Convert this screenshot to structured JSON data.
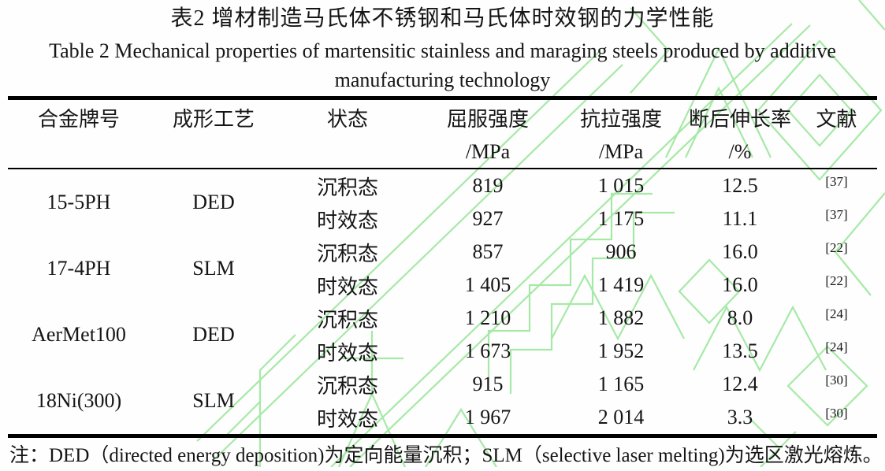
{
  "titles": {
    "cn": "表2 增材制造马氏体不锈钢和马氏体时效钢的力学性能",
    "en_line1": "Table 2 Mechanical properties of martensitic stainless and maraging steels produced by additive",
    "en_line2": "manufacturing technology"
  },
  "table": {
    "columns": [
      {
        "label": "合金牌号",
        "unit": ""
      },
      {
        "label": "成形工艺",
        "unit": ""
      },
      {
        "label": "状态",
        "unit": ""
      },
      {
        "label": "屈服强度",
        "unit": "/MPa"
      },
      {
        "label": "抗拉强度",
        "unit": "/MPa"
      },
      {
        "label": "断后伸长率",
        "unit": "/%"
      },
      {
        "label": "文献",
        "unit": ""
      }
    ],
    "groups": [
      {
        "alloy": "15-5PH",
        "process": "DED",
        "rows": [
          {
            "state": "沉积态",
            "yield_strength": "819",
            "tensile_strength": "1 015",
            "elongation": "12.5",
            "ref": "[37]"
          },
          {
            "state": "时效态",
            "yield_strength": "927",
            "tensile_strength": "1 175",
            "elongation": "11.1",
            "ref": "[37]"
          }
        ]
      },
      {
        "alloy": "17-4PH",
        "process": "SLM",
        "rows": [
          {
            "state": "沉积态",
            "yield_strength": "857",
            "tensile_strength": "906",
            "elongation": "16.0",
            "ref": "[22]"
          },
          {
            "state": "时效态",
            "yield_strength": "1 405",
            "tensile_strength": "1 419",
            "elongation": "16.0",
            "ref": "[22]"
          }
        ]
      },
      {
        "alloy": "AerMet100",
        "process": "DED",
        "rows": [
          {
            "state": "沉积态",
            "yield_strength": "1 210",
            "tensile_strength": "1 882",
            "elongation": "8.0",
            "ref": "[24]"
          },
          {
            "state": "时效态",
            "yield_strength": "1 673",
            "tensile_strength": "1 952",
            "elongation": "13.5",
            "ref": "[24]"
          }
        ]
      },
      {
        "alloy": "18Ni(300)",
        "process": "SLM",
        "rows": [
          {
            "state": "沉积态",
            "yield_strength": "915",
            "tensile_strength": "1 165",
            "elongation": "12.4",
            "ref": "[30]"
          },
          {
            "state": "时效态",
            "yield_strength": "1 967",
            "tensile_strength": "2 014",
            "elongation": "3.3",
            "ref": "[30]"
          }
        ]
      }
    ]
  },
  "note": "注：DED（directed energy deposition)为定向能量沉积；SLM（selective laser melting)为选区激光熔炼。",
  "watermark": {
    "color": "#a6e9a6",
    "description": "pale-green diagonal outlined-glyph watermark"
  }
}
